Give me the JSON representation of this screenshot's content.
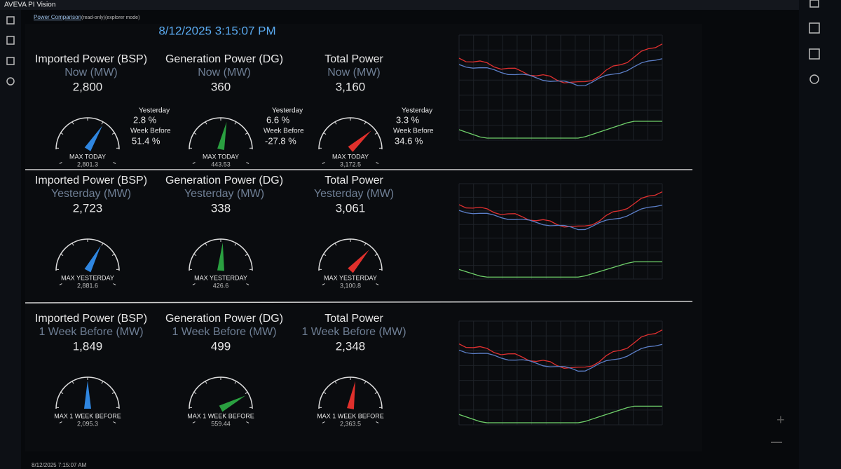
{
  "header": {
    "app": "AVEVA PI Vision",
    "display": "Power Comparison",
    "mode_1": "(read-only)",
    "mode_2": "(explorer mode)"
  },
  "timestamp": "8/12/2025 3:15:07 PM",
  "footer": {
    "time": "8/12/2025 7:15:07 AM"
  },
  "rows": [
    {
      "panels": [
        {
          "title": "Imported Power (BSP)",
          "subtitle": "Now (MW)",
          "value": "2,800",
          "max_label": "MAX TODAY",
          "max_value": "2,801.3",
          "yesterday_label": "Yesterday",
          "yesterday": "2.8 %",
          "week_label": "Week Before",
          "week": "51.4 %"
        },
        {
          "title": "Generation Power (DG)",
          "subtitle": "Now (MW)",
          "value": "360",
          "max_label": "MAX TODAY",
          "max_value": "443.53",
          "yesterday_label": "Yesterday",
          "yesterday": "6.6 %",
          "week_label": "Week Before",
          "week": "-27.8 %"
        },
        {
          "title": "Total Power",
          "subtitle": "Now (MW)",
          "value": "3,160",
          "max_label": "MAX TODAY",
          "max_value": "3,172.5",
          "yesterday_label": "Yesterday",
          "yesterday": "3.3 %",
          "week_label": "Week Before",
          "week": "34.6 %"
        }
      ]
    },
    {
      "panels": [
        {
          "title": "Imported Power (BSP)",
          "subtitle": "Yesterday (MW)",
          "value": "2,723",
          "max_label": "MAX YESTERDAY",
          "max_value": "2,881.6"
        },
        {
          "title": "Generation Power (DG)",
          "subtitle": "Yesterday (MW)",
          "value": "338",
          "max_label": "MAX YESTERDAY",
          "max_value": "426.6"
        },
        {
          "title": "Total Power",
          "subtitle": "Yesterday (MW)",
          "value": "3,061",
          "max_label": "MAX YESTERDAY",
          "max_value": "3,100.8"
        }
      ]
    },
    {
      "panels": [
        {
          "title": "Imported Power (BSP)",
          "subtitle": "1 Week Before (MW)",
          "value": "1,849",
          "max_label": "MAX 1 WEEK BEFORE",
          "max_value": "2,095.3"
        },
        {
          "title": "Generation Power (DG)",
          "subtitle": "1 Week Before (MW)",
          "value": "499",
          "max_label": "MAX 1 WEEK BEFORE",
          "max_value": "559.44"
        },
        {
          "title": "Total Power",
          "subtitle": "1 Week Before (MW)",
          "value": "2,348",
          "max_label": "MAX 1 WEEK BEFORE",
          "max_value": "2,363.5"
        }
      ]
    }
  ]
}
